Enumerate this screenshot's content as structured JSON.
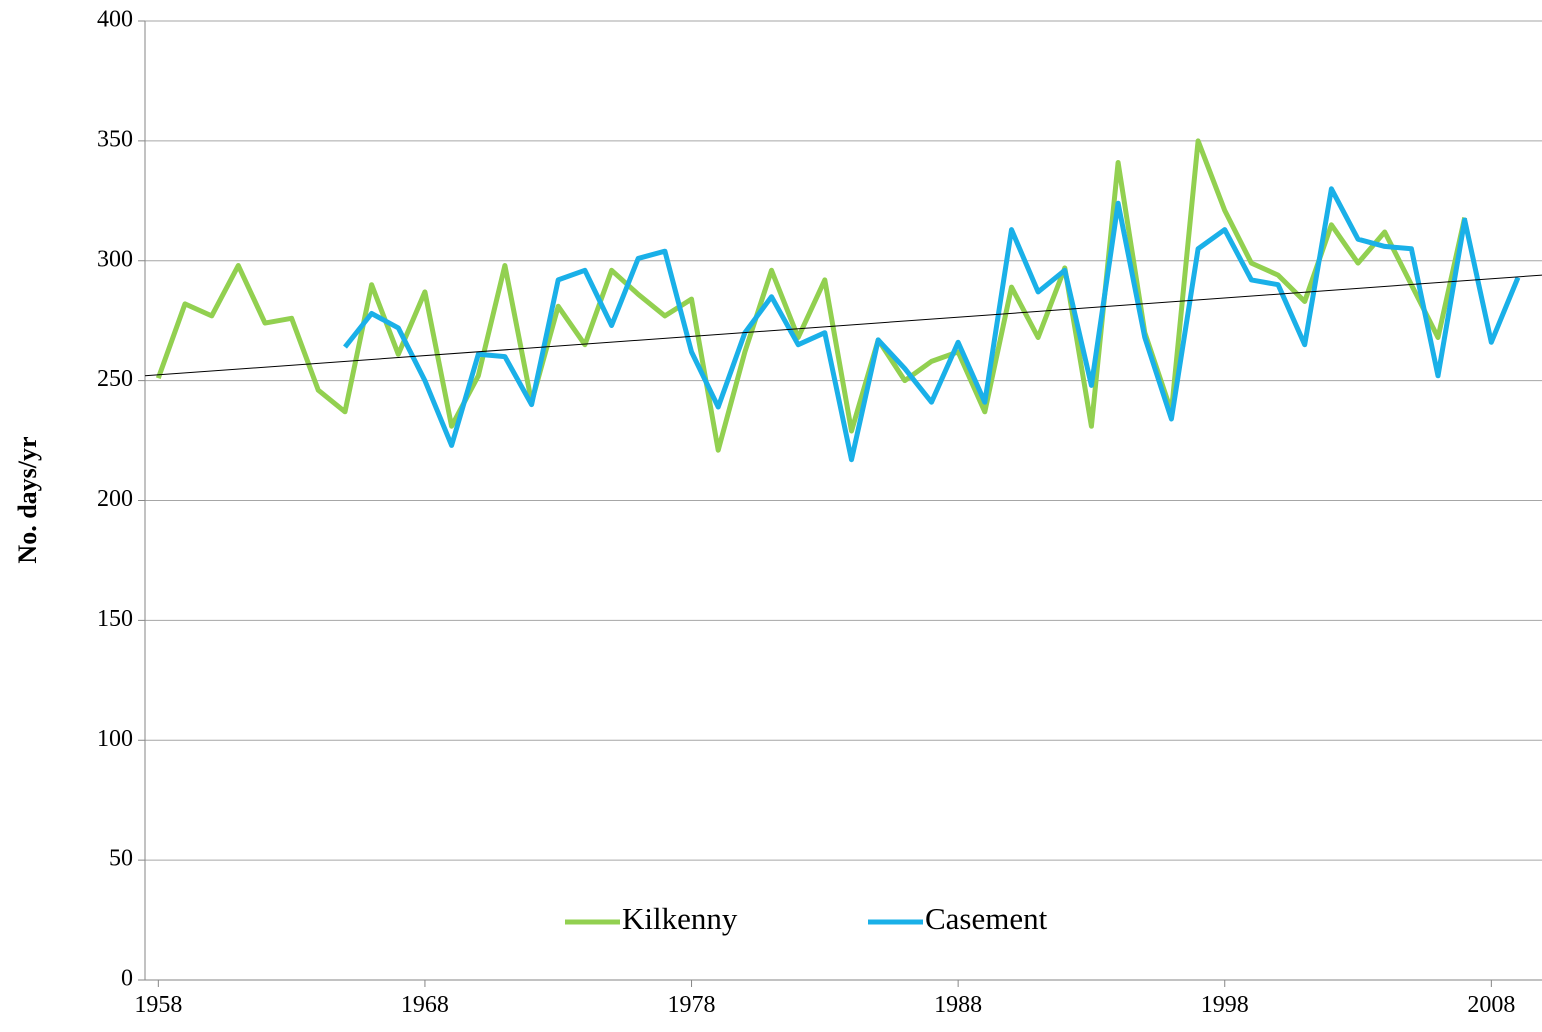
{
  "chart_data": {
    "type": "line",
    "y_label": "No. days/yr",
    "x": [
      1958,
      1959,
      1960,
      1961,
      1962,
      1963,
      1964,
      1965,
      1966,
      1967,
      1968,
      1969,
      1970,
      1971,
      1972,
      1973,
      1974,
      1975,
      1976,
      1977,
      1978,
      1979,
      1980,
      1981,
      1982,
      1983,
      1984,
      1985,
      1986,
      1987,
      1988,
      1989,
      1990,
      1991,
      1992,
      1993,
      1994,
      1995,
      1996,
      1997,
      1998,
      1999,
      2000,
      2001,
      2002,
      2003,
      2004,
      2005,
      2006,
      2007,
      2008,
      2009
    ],
    "series": [
      {
        "name": "Kilkenny",
        "color": "#92d050",
        "values": [
          251,
          282,
          277,
          298,
          274,
          276,
          246,
          237,
          290,
          261,
          287,
          231,
          252,
          298,
          241,
          281,
          265,
          296,
          286,
          277,
          284,
          221,
          262,
          296,
          268,
          292,
          229,
          267,
          250,
          258,
          262,
          237,
          289,
          268,
          297,
          231,
          341,
          270,
          237,
          350,
          321,
          299,
          294,
          283,
          315,
          299,
          312,
          290,
          268,
          318,
          null,
          null
        ]
      },
      {
        "name": "Casement",
        "color": "#1ab0e8",
        "values": [
          null,
          null,
          null,
          null,
          null,
          null,
          null,
          264,
          278,
          272,
          250,
          223,
          261,
          260,
          240,
          292,
          296,
          273,
          301,
          304,
          262,
          239,
          270,
          285,
          265,
          270,
          217,
          267,
          255,
          241,
          266,
          241,
          313,
          287,
          296,
          248,
          324,
          268,
          234,
          305,
          313,
          292,
          290,
          265,
          330,
          309,
          306,
          305,
          252,
          317,
          266,
          293
        ]
      }
    ],
    "trend": {
      "color": "#000000",
      "x": [
        1957.5,
        2009.9
      ],
      "values": [
        252,
        294
      ]
    },
    "xlim": [
      1957.5,
      2009.9
    ],
    "xticks": [
      1958,
      1968,
      1978,
      1988,
      1998,
      2008
    ],
    "ylim": [
      0,
      400
    ],
    "yticks": [
      0,
      50,
      100,
      150,
      200,
      250,
      300,
      350,
      400
    ],
    "grid": true,
    "legend": "bottom"
  }
}
